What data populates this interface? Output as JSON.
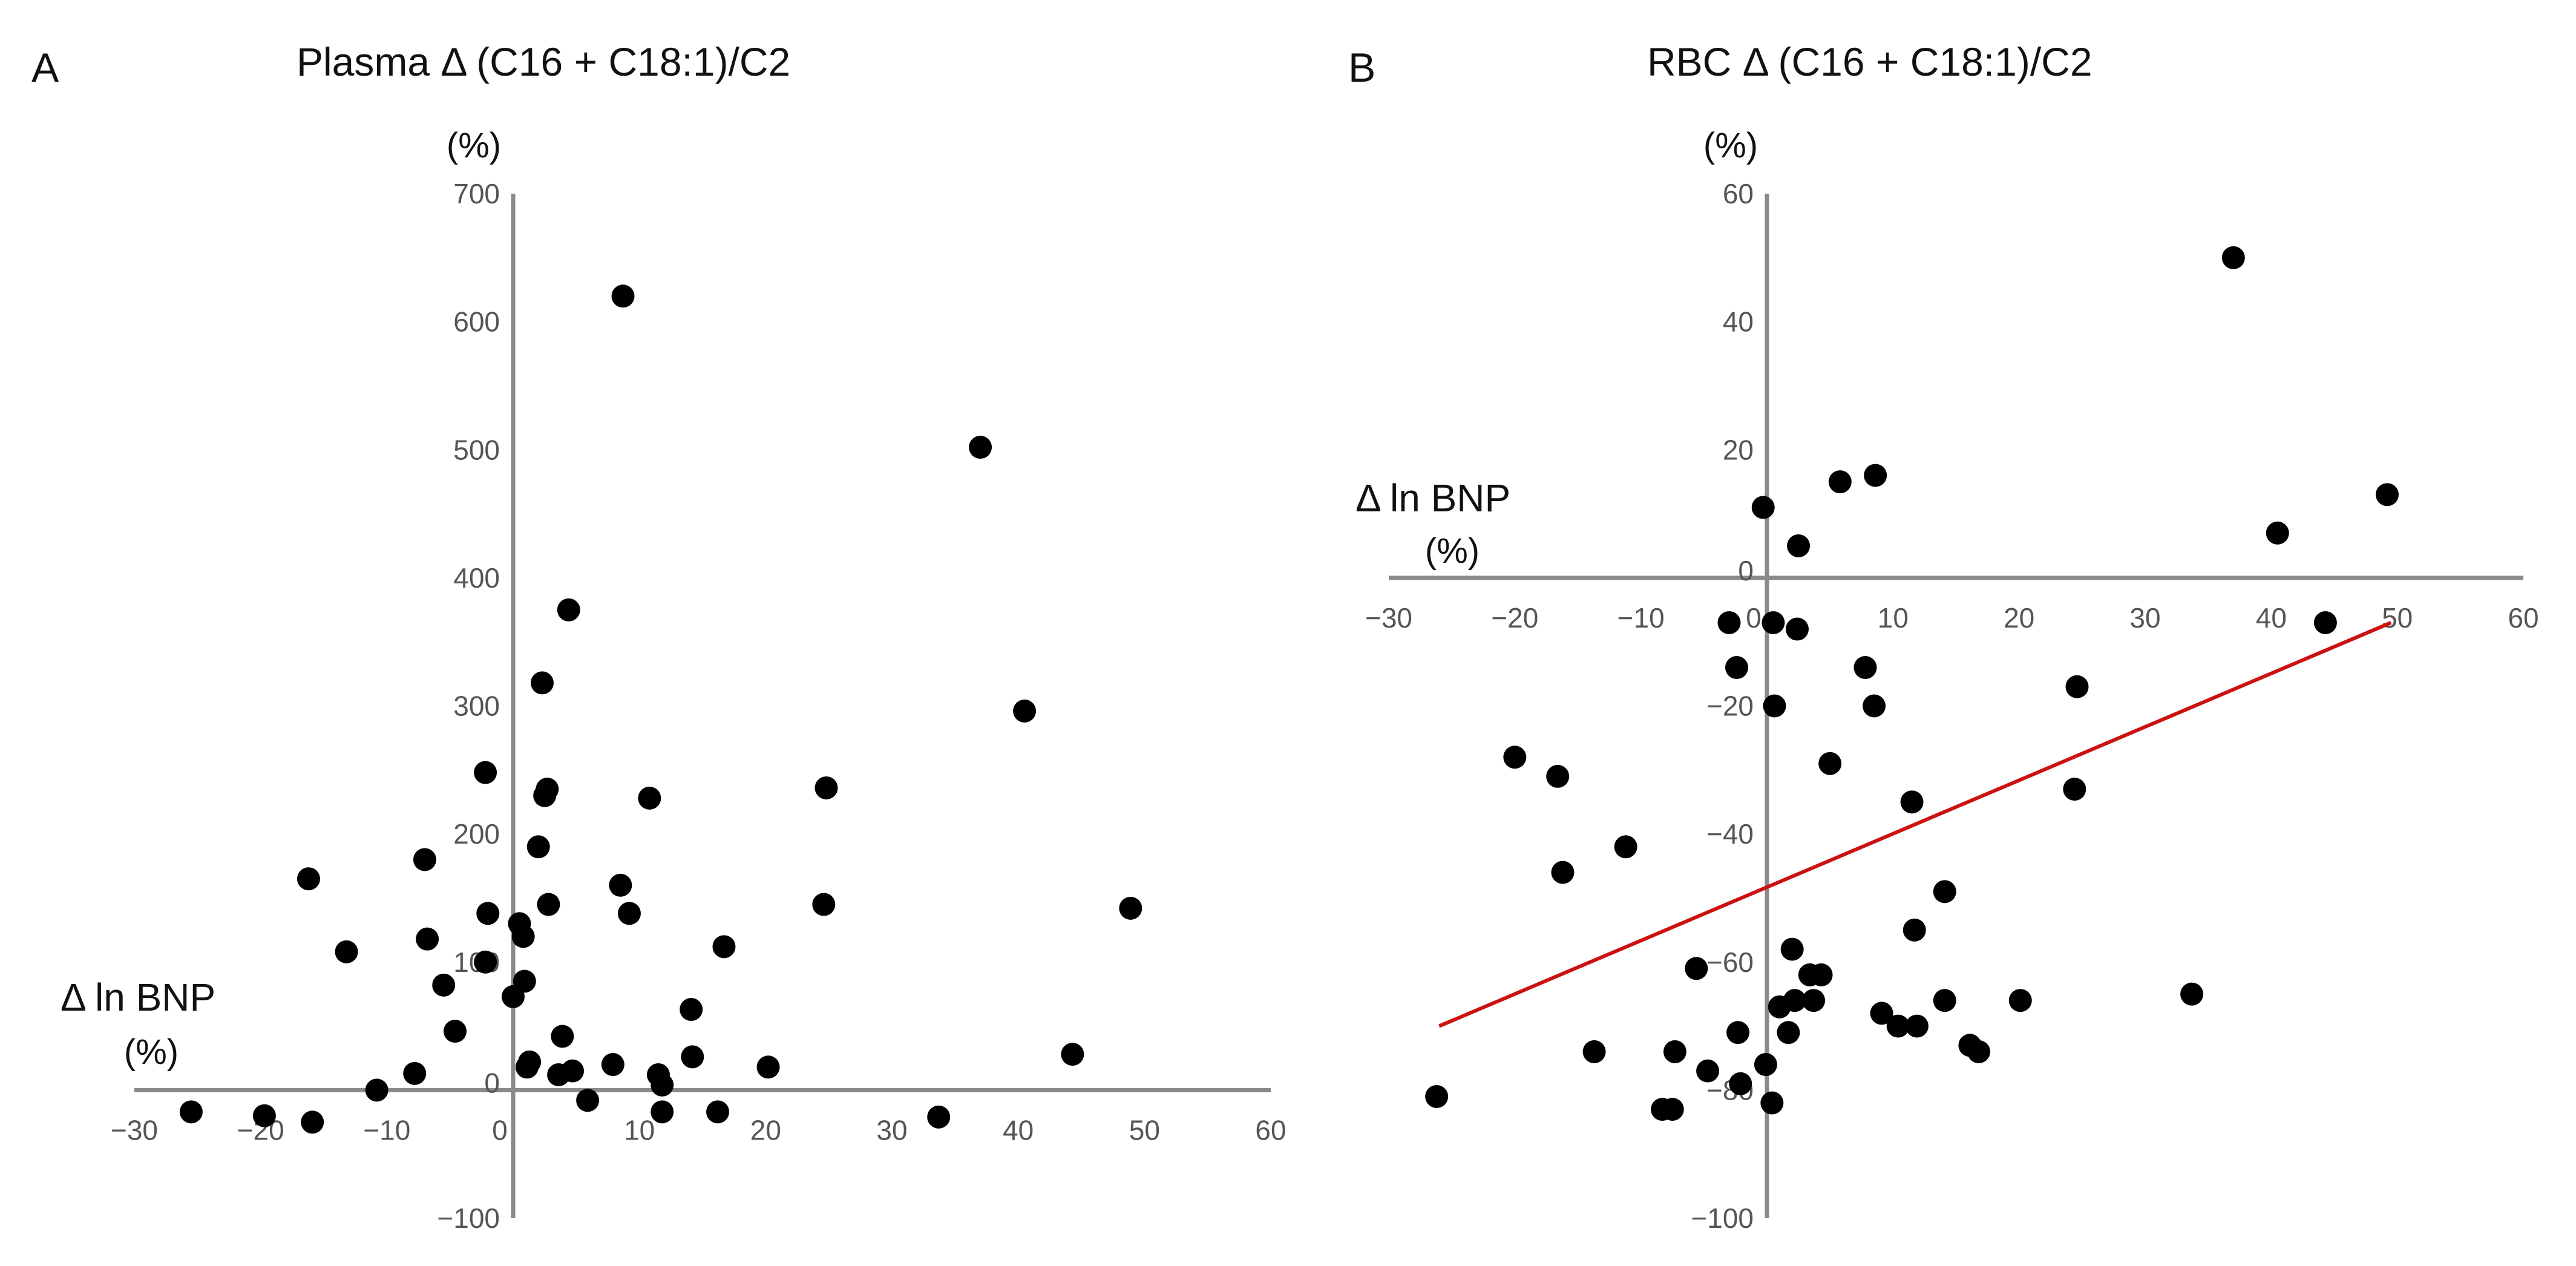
{
  "colors": {
    "points": "#000000",
    "axis": "#8a8a8a",
    "regression": "#cc1111",
    "text": "#111111",
    "tick_text": "#555555"
  },
  "chart_data": [
    {
      "panel": "A",
      "type": "scatter",
      "title": "Plasma Δ (C16 + C18:1)/C2",
      "ylabel": "(%)",
      "xlabel": "Δ ln BNP",
      "xlabel_unit": "(%)",
      "xlim": [
        -30,
        60
      ],
      "ylim": [
        -100,
        700
      ],
      "x_ticks": [
        -30,
        -20,
        -10,
        0,
        10,
        20,
        30,
        40,
        50,
        60
      ],
      "x_tick_labels": [
        "−30",
        "−20",
        "−10",
        "0",
        "10",
        "20",
        "30",
        "40",
        "50",
        "60"
      ],
      "y_ticks": [
        -100,
        0,
        100,
        200,
        300,
        400,
        500,
        600,
        700
      ],
      "y_tick_labels": [
        "−100",
        "0",
        "100",
        "200",
        "300",
        "400",
        "500",
        "600",
        "700"
      ],
      "regression": null,
      "points": [
        [
          -25.5,
          -17
        ],
        [
          -19.7,
          -20
        ],
        [
          -15.9,
          -25
        ],
        [
          -10.8,
          0
        ],
        [
          -7.8,
          13
        ],
        [
          -16.2,
          165
        ],
        [
          -13.2,
          108
        ],
        [
          -7.0,
          180
        ],
        [
          -6.8,
          118
        ],
        [
          -5.5,
          82
        ],
        [
          -4.6,
          46
        ],
        [
          -2.2,
          248
        ],
        [
          -2.0,
          138
        ],
        [
          -2.2,
          100
        ],
        [
          0.0,
          73
        ],
        [
          0.5,
          130
        ],
        [
          0.8,
          120
        ],
        [
          0.9,
          85
        ],
        [
          1.1,
          18
        ],
        [
          1.3,
          22
        ],
        [
          2.0,
          190
        ],
        [
          2.3,
          318
        ],
        [
          2.5,
          230
        ],
        [
          2.7,
          235
        ],
        [
          2.8,
          145
        ],
        [
          3.6,
          12
        ],
        [
          3.9,
          42
        ],
        [
          4.4,
          375
        ],
        [
          4.7,
          15
        ],
        [
          5.9,
          -8
        ],
        [
          7.9,
          20
        ],
        [
          8.5,
          160
        ],
        [
          8.7,
          620
        ],
        [
          9.2,
          138
        ],
        [
          10.8,
          228
        ],
        [
          11.5,
          12
        ],
        [
          11.8,
          4
        ],
        [
          11.8,
          -17
        ],
        [
          14.1,
          63
        ],
        [
          14.2,
          26
        ],
        [
          16.2,
          -17
        ],
        [
          16.7,
          112
        ],
        [
          20.2,
          18
        ],
        [
          24.6,
          145
        ],
        [
          24.8,
          236
        ],
        [
          33.7,
          -21
        ],
        [
          37.0,
          502
        ],
        [
          40.5,
          296
        ],
        [
          44.3,
          28
        ],
        [
          48.9,
          142
        ]
      ]
    },
    {
      "panel": "B",
      "type": "scatter",
      "title": "RBC Δ (C16 + C18:1)/C2",
      "ylabel": "(%)",
      "xlabel": "Δ ln BNP",
      "xlabel_unit": "(%)",
      "xlim": [
        -30,
        60
      ],
      "ylim": [
        -100,
        60
      ],
      "x_ticks": [
        -30,
        -20,
        -10,
        0,
        10,
        20,
        30,
        40,
        50,
        60
      ],
      "x_tick_labels": [
        "−30",
        "−20",
        "−10",
        "0",
        "10",
        "20",
        "30",
        "40",
        "50",
        "60"
      ],
      "y_ticks": [
        -100,
        -80,
        -60,
        -40,
        -20,
        0,
        20,
        40,
        60
      ],
      "y_tick_labels": [
        "−100",
        "−80",
        "−60",
        "−40",
        "−20",
        "0",
        "20",
        "40",
        "60"
      ],
      "regression": {
        "x_start": -26,
        "y_start": -70,
        "x_end": 49.5,
        "y_end": -7
      },
      "points": [
        [
          -26.2,
          -81
        ],
        [
          -20.0,
          -28
        ],
        [
          -16.6,
          -31
        ],
        [
          -16.2,
          -46
        ],
        [
          -11.2,
          -42
        ],
        [
          -13.7,
          -74
        ],
        [
          -8.3,
          -83
        ],
        [
          -7.5,
          -83
        ],
        [
          -7.3,
          -74
        ],
        [
          -5.6,
          -61
        ],
        [
          -4.7,
          -77
        ],
        [
          -3.0,
          -7
        ],
        [
          -2.4,
          -14
        ],
        [
          -2.3,
          -71
        ],
        [
          -2.1,
          -79
        ],
        [
          -0.3,
          11
        ],
        [
          -0.1,
          -76
        ],
        [
          0.4,
          -82
        ],
        [
          0.5,
          -7
        ],
        [
          0.6,
          -20
        ],
        [
          1.0,
          -67
        ],
        [
          1.7,
          -71
        ],
        [
          2.0,
          -58
        ],
        [
          2.2,
          -66
        ],
        [
          2.4,
          -8
        ],
        [
          2.5,
          5
        ],
        [
          3.4,
          -62
        ],
        [
          3.7,
          -66
        ],
        [
          4.3,
          -62
        ],
        [
          5.0,
          -29
        ],
        [
          5.8,
          15
        ],
        [
          7.8,
          -14
        ],
        [
          8.5,
          -20
        ],
        [
          8.6,
          16
        ],
        [
          9.1,
          -68
        ],
        [
          10.4,
          -70
        ],
        [
          11.5,
          -35
        ],
        [
          11.7,
          -55
        ],
        [
          11.9,
          -70
        ],
        [
          14.1,
          -66
        ],
        [
          14.1,
          -49
        ],
        [
          16.1,
          -73
        ],
        [
          16.8,
          -74
        ],
        [
          20.1,
          -66
        ],
        [
          24.4,
          -33
        ],
        [
          24.6,
          -17
        ],
        [
          33.7,
          -65
        ],
        [
          37.0,
          50
        ],
        [
          40.5,
          7
        ],
        [
          44.3,
          -7
        ],
        [
          49.2,
          13
        ]
      ]
    }
  ]
}
